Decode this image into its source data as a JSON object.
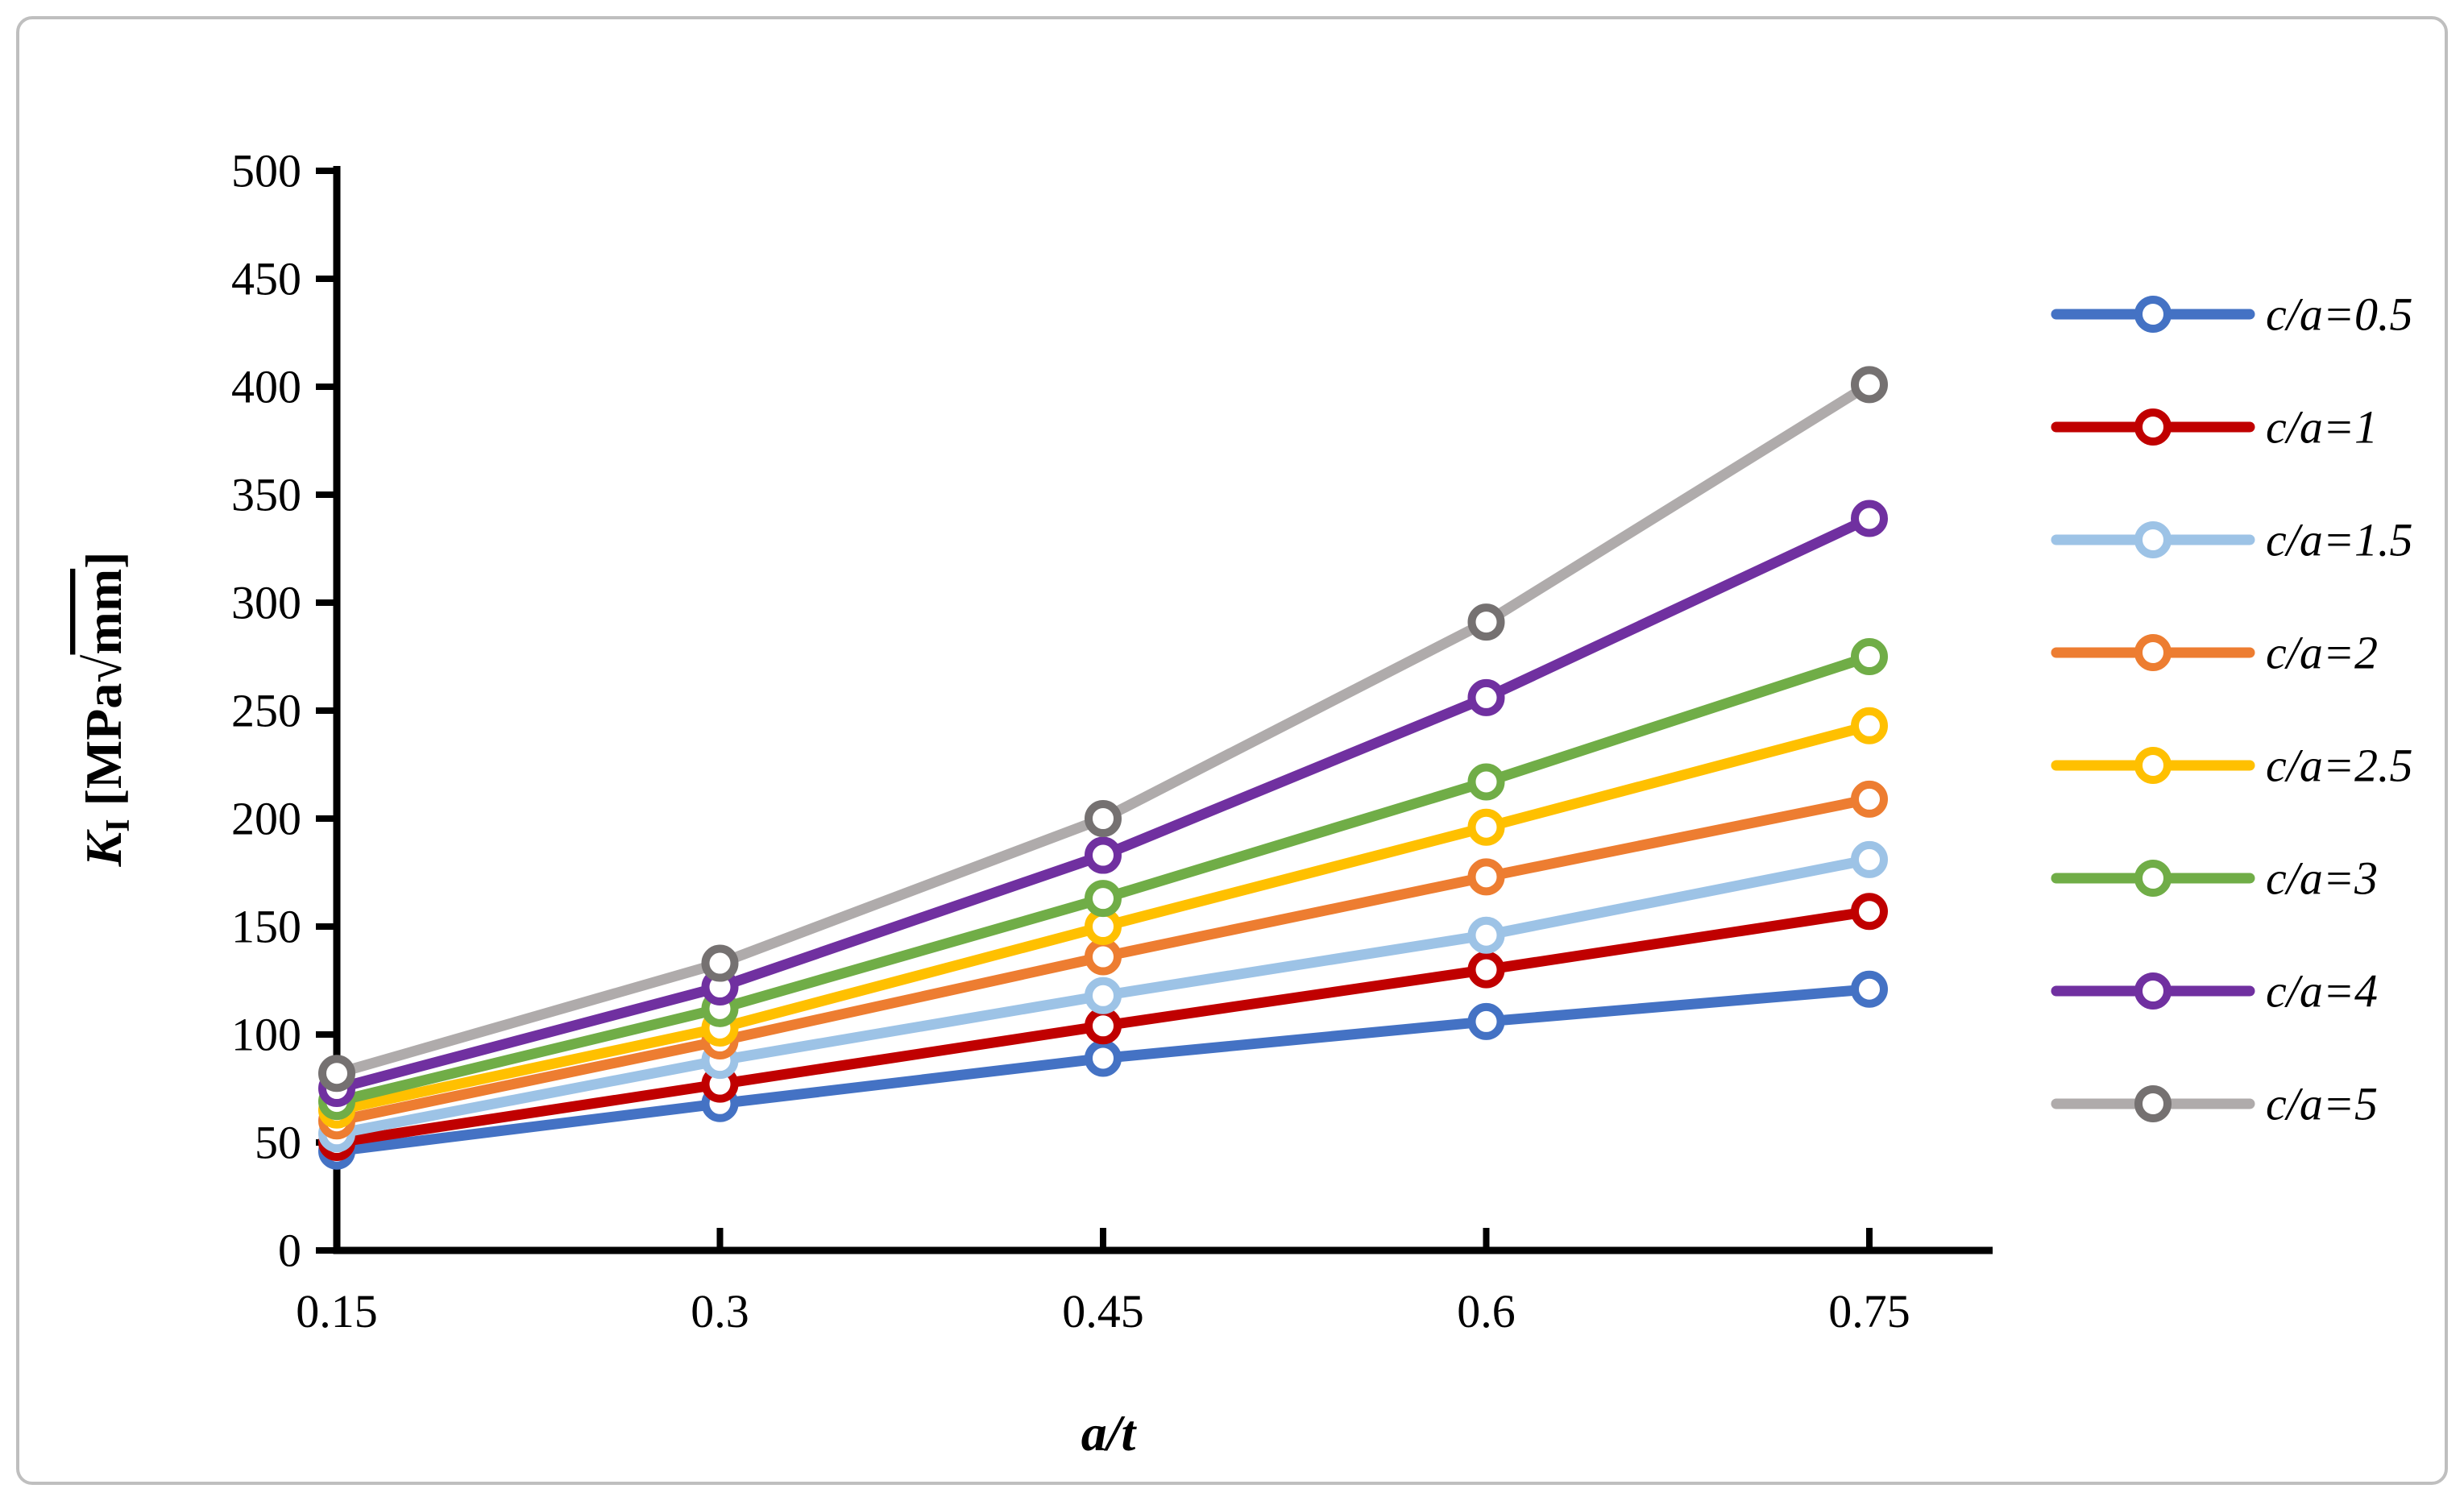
{
  "frame": {
    "background": "#ffffff",
    "border_color": "#bfbfbf",
    "axis_color": "#000000"
  },
  "chart_data": {
    "type": "line",
    "title": "",
    "xlabel": "a/t",
    "ylabel_plain": "KI [MPa√mm]",
    "ylabel_parts": {
      "symbol": "K",
      "subscript": "I",
      "units_open": " [MPa",
      "radical": "√",
      "radicand": "mm",
      "units_close": "]"
    },
    "x": [
      0.15,
      0.3,
      0.45,
      0.6,
      0.75
    ],
    "x_tick_labels": [
      "0.15",
      "0.3",
      "0.45",
      "0.6",
      "0.75"
    ],
    "ylim": [
      0,
      500
    ],
    "ytick_step": 50,
    "y_tick_labels": [
      "0",
      "50",
      "100",
      "150",
      "200",
      "250",
      "300",
      "350",
      "400",
      "450",
      "500"
    ],
    "grid": false,
    "legend_position": "right",
    "marker": "circle-open",
    "series": [
      {
        "name": "c/a=0.5",
        "color": "#4472C4",
        "marker_color": "#4472C4",
        "values": [
          46,
          68,
          89,
          106,
          121
        ]
      },
      {
        "name": "c/a=1",
        "color": "#C00000",
        "marker_color": "#C00000",
        "values": [
          50,
          77,
          104,
          130,
          157
        ]
      },
      {
        "name": "c/a=1.5",
        "color": "#9DC3E6",
        "marker_color": "#9DC3E6",
        "values": [
          54,
          88,
          118,
          146,
          181
        ]
      },
      {
        "name": "c/a=2",
        "color": "#ED7D31",
        "marker_color": "#ED7D31",
        "values": [
          60,
          97,
          136,
          173,
          209
        ]
      },
      {
        "name": "c/a=2.5",
        "color": "#FFC000",
        "marker_color": "#FFC000",
        "values": [
          65,
          103,
          150,
          196,
          243
        ]
      },
      {
        "name": "c/a=3",
        "color": "#70AD47",
        "marker_color": "#70AD47",
        "values": [
          69,
          112,
          163,
          217,
          275
        ]
      },
      {
        "name": "c/a=4",
        "color": "#7030A0",
        "marker_color": "#7030A0",
        "values": [
          75,
          122,
          183,
          256,
          339
        ]
      },
      {
        "name": "c/a=5",
        "color": "#AFABAB",
        "marker_color": "#757171",
        "values": [
          82,
          133,
          200,
          291,
          401
        ]
      }
    ]
  }
}
